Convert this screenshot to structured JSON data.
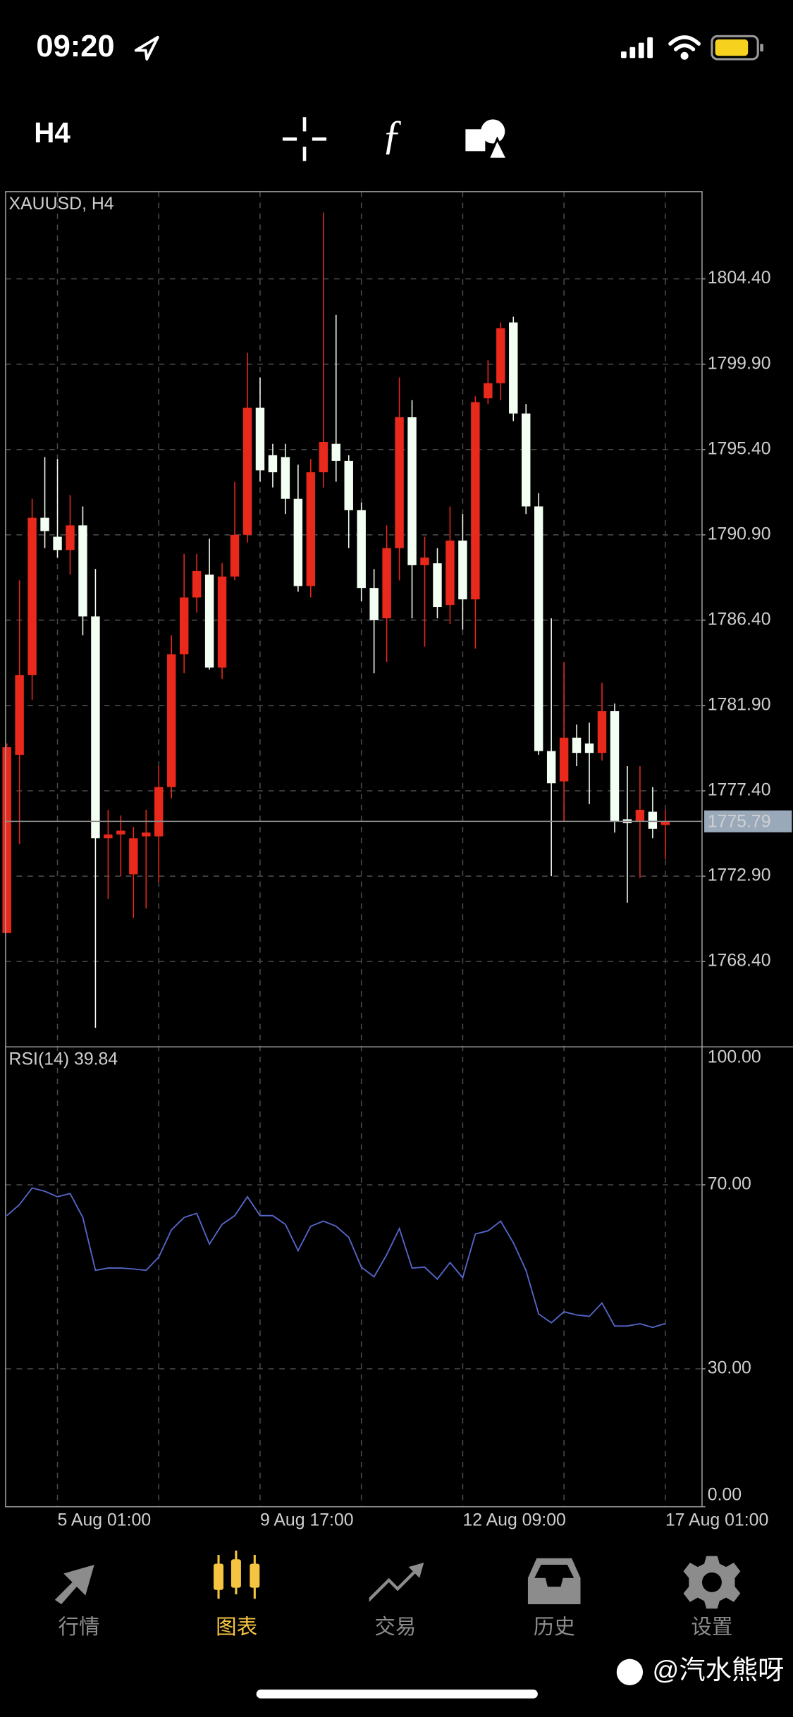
{
  "status_bar": {
    "time": "09:20"
  },
  "toolbar": {
    "timeframe": "H4"
  },
  "chart_data": [
    {
      "type": "candlestick",
      "title": "XAUUSD, H4",
      "open": [
        1769.9,
        1779.3,
        1783.5,
        1791.8,
        1790.8,
        1790.1,
        1791.4,
        1786.6,
        1774.9,
        1775.1,
        1773.0,
        1775.0,
        1775.0,
        1777.6,
        1784.6,
        1787.6,
        1788.8,
        1783.9,
        1788.7,
        1790.9,
        1797.6,
        1795.1,
        1795.0,
        1792.8,
        1788.2,
        1794.2,
        1795.7,
        1794.8,
        1792.2,
        1788.1,
        1786.5,
        1790.2,
        1797.1,
        1789.3,
        1789.4,
        1787.2,
        1790.6,
        1787.5,
        1798.1,
        1798.9,
        1802.1,
        1797.3,
        1792.4,
        1779.5,
        1777.9,
        1780.2,
        1779.9,
        1779.4,
        1781.6,
        1775.9,
        1775.8,
        1776.3,
        1775.6
      ],
      "high": [
        1779.9,
        1788.5,
        1792.8,
        1795.0,
        1794.9,
        1793.0,
        1792.4,
        1789.1,
        1776.4,
        1776.1,
        1775.5,
        1776.4,
        1778.7,
        1785.6,
        1789.9,
        1789.9,
        1790.7,
        1789.4,
        1793.7,
        1800.5,
        1799.2,
        1795.7,
        1795.7,
        1794.6,
        1794.9,
        1807.9,
        1802.5,
        1795.1,
        1792.6,
        1789.1,
        1791.4,
        1799.2,
        1798.0,
        1790.8,
        1790.2,
        1792.4,
        1792.0,
        1798.2,
        1800.1,
        1802.1,
        1802.4,
        1797.8,
        1793.1,
        1786.5,
        1784.2,
        1780.9,
        1781.0,
        1783.1,
        1782.0,
        1778.7,
        1778.7,
        1777.6,
        1776.4
      ],
      "low": [
        1769.9,
        1774.6,
        1782.2,
        1790.2,
        1789.7,
        1788.8,
        1785.6,
        1764.9,
        1771.7,
        1772.9,
        1770.7,
        1771.2,
        1772.6,
        1777.0,
        1783.6,
        1786.8,
        1783.8,
        1783.3,
        1788.5,
        1790.5,
        1793.7,
        1793.4,
        1792.0,
        1787.9,
        1787.6,
        1793.4,
        1793.7,
        1790.2,
        1787.4,
        1783.6,
        1784.2,
        1788.5,
        1786.5,
        1785.0,
        1786.5,
        1786.2,
        1785.9,
        1784.9,
        1797.8,
        1798.0,
        1796.9,
        1792.0,
        1779.3,
        1772.9,
        1775.8,
        1778.7,
        1776.7,
        1779.0,
        1775.2,
        1771.5,
        1772.8,
        1774.9,
        1773.8
      ],
      "close": [
        1779.7,
        1783.5,
        1791.8,
        1791.1,
        1790.1,
        1791.4,
        1786.6,
        1774.9,
        1775.1,
        1775.3,
        1774.9,
        1775.2,
        1777.6,
        1784.6,
        1787.6,
        1789.0,
        1783.9,
        1788.7,
        1790.9,
        1797.6,
        1794.3,
        1794.2,
        1792.8,
        1788.2,
        1794.2,
        1795.8,
        1794.8,
        1792.2,
        1788.1,
        1786.4,
        1790.2,
        1797.1,
        1789.3,
        1789.7,
        1787.1,
        1790.6,
        1787.5,
        1797.9,
        1798.9,
        1801.8,
        1797.3,
        1792.4,
        1779.5,
        1777.8,
        1780.2,
        1779.4,
        1779.4,
        1781.6,
        1775.8,
        1775.7,
        1776.4,
        1775.4,
        1775.8
      ],
      "up_color": "#e8291c",
      "down_color": "#f2fff2",
      "last_price": {
        "value": 1775.79,
        "label": "1775.79"
      },
      "ylim": [
        1763.9,
        1809.0
      ],
      "yticks": [
        {
          "value": 1768.4,
          "label": "1768.40"
        },
        {
          "value": 1772.9,
          "label": "1772.90"
        },
        {
          "value": 1777.4,
          "label": "1777.40"
        },
        {
          "value": 1781.9,
          "label": "1781.90"
        },
        {
          "value": 1786.4,
          "label": "1786.40"
        },
        {
          "value": 1790.9,
          "label": "1790.90"
        },
        {
          "value": 1795.4,
          "label": "1795.40"
        },
        {
          "value": 1799.9,
          "label": "1799.90"
        },
        {
          "value": 1804.4,
          "label": "1804.40"
        }
      ],
      "xlim": [
        -0.1,
        54.9
      ],
      "xticks": [
        {
          "value": 4,
          "label": "5 Aug 01:00"
        },
        {
          "value": 12,
          "label": null
        },
        {
          "value": 20,
          "label": "9 Aug 17:00"
        },
        {
          "value": 28,
          "label": null
        },
        {
          "value": 36,
          "label": "12 Aug 09:00"
        },
        {
          "value": 44,
          "label": null
        },
        {
          "value": 52,
          "label": "17 Aug 01:00"
        }
      ],
      "grid": true
    },
    {
      "type": "line",
      "title": "RSI(14) 39.84",
      "values": [
        63.3,
        65.7,
        69.3,
        68.6,
        67.4,
        68.1,
        62.9,
        51.4,
        51.9,
        51.9,
        51.7,
        51.4,
        54.3,
        60.2,
        62.9,
        63.8,
        57.1,
        61.4,
        63.3,
        67.4,
        63.3,
        63.3,
        61.4,
        55.7,
        61.0,
        62.1,
        61.0,
        58.6,
        52.1,
        50.0,
        54.8,
        60.5,
        51.9,
        52.1,
        49.5,
        53.1,
        49.8,
        59.3,
        60.0,
        62.1,
        57.4,
        51.4,
        41.9,
        40.0,
        42.4,
        41.7,
        41.4,
        44.3,
        39.3,
        39.3,
        39.8,
        39.0,
        39.84
      ],
      "color": "#5566c8",
      "ylim": [
        0,
        100
      ],
      "yticks": [
        {
          "value": 0,
          "label": "0.00"
        },
        {
          "value": 30,
          "label": "30.00"
        },
        {
          "value": 70,
          "label": "70.00"
        },
        {
          "value": 100,
          "label": "100.00"
        }
      ],
      "grid": true
    }
  ],
  "tabs": [
    {
      "label": "行情"
    },
    {
      "label": "图表"
    },
    {
      "label": "交易"
    },
    {
      "label": "历史"
    },
    {
      "label": "设置"
    }
  ],
  "active_tab": 1,
  "watermark": "@汽水熊呀"
}
